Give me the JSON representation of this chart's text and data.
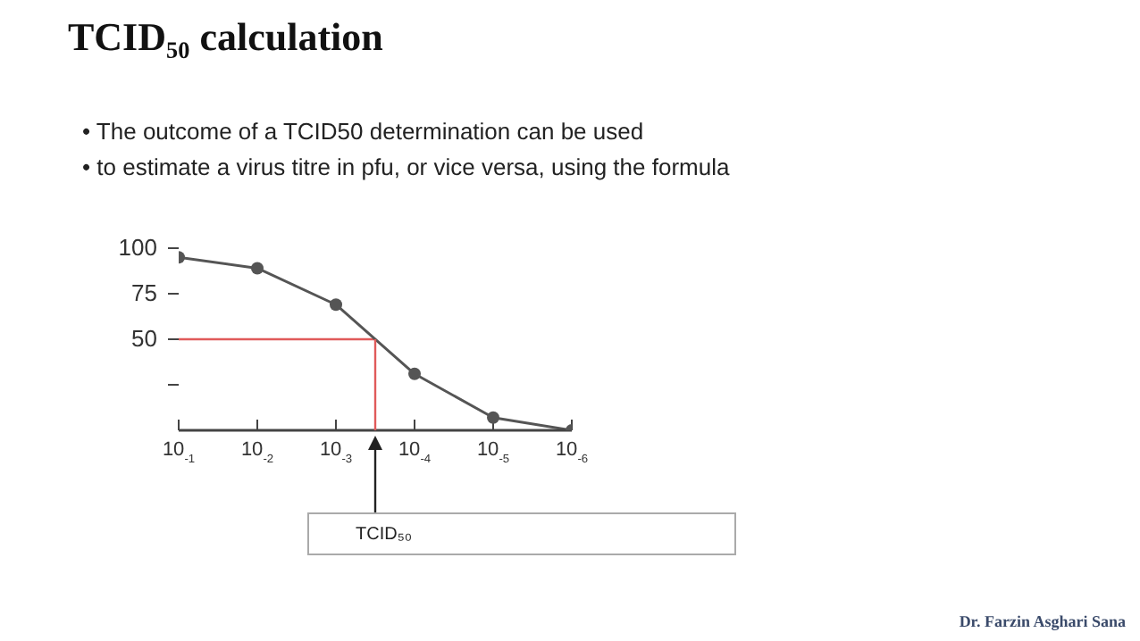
{
  "chart_data": {
    "type": "line",
    "title": "TCID₅₀ calculation",
    "annotations": [
      "• The outcome of a TCID50 determination can be used",
      "• to estimate a virus titre in pfu, or vice versa, using the formula",
      "Dr. Farzin Asghari Sana",
      "TCID₅₀"
    ],
    "categories": [
      "10$_{-1}$",
      "10$_{-2}$",
      "10$_{-3}$",
      "10$_{-4}$",
      "10$_{-5}$",
      "10$_{-6}$"
    ],
    "series": [
      {
        "color": "#555555",
        "values": [
          95,
          89,
          69,
          31,
          7,
          0
        ]
      }
    ],
    "ylim": [
      0,
      100
    ],
    "yticks": [
      {
        "value": 25,
        "label": null
      },
      50,
      75,
      100
    ],
    "ref_lines": [
      {
        "axis": "y",
        "value": 50,
        "color": "#e05a5a"
      }
    ],
    "marker": "circle",
    "line_style": "solid",
    "grid": false,
    "legend": false
  }
}
